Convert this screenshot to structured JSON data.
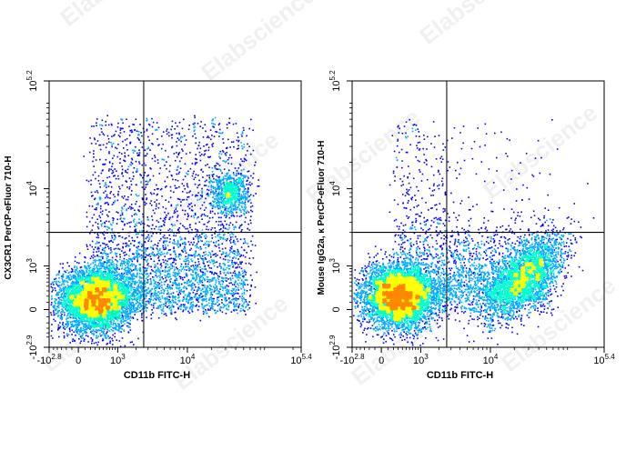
{
  "watermark": "Elabscience",
  "chart_data": [
    {
      "type": "scatter",
      "subtype": "flow-cytometry-density-dot-plot",
      "xlabel": "CD11b FITC-H",
      "ylabel": "CX3CR1 PerCP-eFluor 710-H",
      "x_axis_scale": "biexponential",
      "y_axis_scale": "biexponential",
      "x_ticks": [
        {
          "base": "-10",
          "exp": "2.8",
          "value": -631
        },
        {
          "base": "0",
          "exp": "",
          "value": 0
        },
        {
          "base": "10",
          "exp": "3",
          "value": 1000
        },
        {
          "base": "10",
          "exp": "4",
          "value": 10000
        },
        {
          "base": "10",
          "exp": "5.4",
          "value": 251189
        }
      ],
      "y_ticks": [
        {
          "base": "-10",
          "exp": "2.9",
          "value": -794
        },
        {
          "base": "0",
          "exp": "",
          "value": 0
        },
        {
          "base": "10",
          "exp": "3",
          "value": 1000
        },
        {
          "base": "10",
          "exp": "4",
          "value": 10000
        },
        {
          "base": "10",
          "exp": "5.2",
          "value": 158489
        }
      ],
      "quadrant_gate": {
        "x": 2600,
        "y": 3000
      },
      "populations": [
        {
          "name": "",
          "center": [
            300,
            150
          ],
          "count": 5200,
          "peak": true
        },
        {
          "name": "",
          "center": [
            33000,
            9000
          ],
          "count": 700
        }
      ],
      "color_scale": [
        "#0000ff",
        "#00aaff",
        "#00ffcc",
        "#ffff00",
        "#ff8800",
        "#ff0000"
      ],
      "grid": false,
      "legend": "none"
    },
    {
      "type": "scatter",
      "subtype": "flow-cytometry-density-dot-plot",
      "xlabel": "CD11b FITC-H",
      "ylabel": "Mouse IgG2a, κ PerCP-eFluor 710-H",
      "x_axis_scale": "biexponential",
      "y_axis_scale": "biexponential",
      "x_ticks": [
        {
          "base": "-10",
          "exp": "2.8",
          "value": -631
        },
        {
          "base": "0",
          "exp": "",
          "value": 0
        },
        {
          "base": "10",
          "exp": "3",
          "value": 1000
        },
        {
          "base": "10",
          "exp": "4",
          "value": 10000
        },
        {
          "base": "10",
          "exp": "5.4",
          "value": 251189
        }
      ],
      "y_ticks": [
        {
          "base": "-10",
          "exp": "2.9",
          "value": -794
        },
        {
          "base": "0",
          "exp": "",
          "value": 0
        },
        {
          "base": "10",
          "exp": "3",
          "value": 1000
        },
        {
          "base": "10",
          "exp": "4",
          "value": 10000
        },
        {
          "base": "10",
          "exp": "5.2",
          "value": 158489
        }
      ],
      "quadrant_gate": {
        "x": 2600,
        "y": 3000
      },
      "populations": [
        {
          "name": "",
          "center": [
            300,
            200
          ],
          "count": 5200,
          "peak": true
        },
        {
          "name": "",
          "center": [
            25000,
            600
          ],
          "count": 2600
        }
      ],
      "color_scale": [
        "#0000ff",
        "#00aaff",
        "#00ffcc",
        "#ffff00",
        "#ff8800",
        "#ff0000"
      ],
      "grid": false,
      "legend": "none"
    }
  ]
}
